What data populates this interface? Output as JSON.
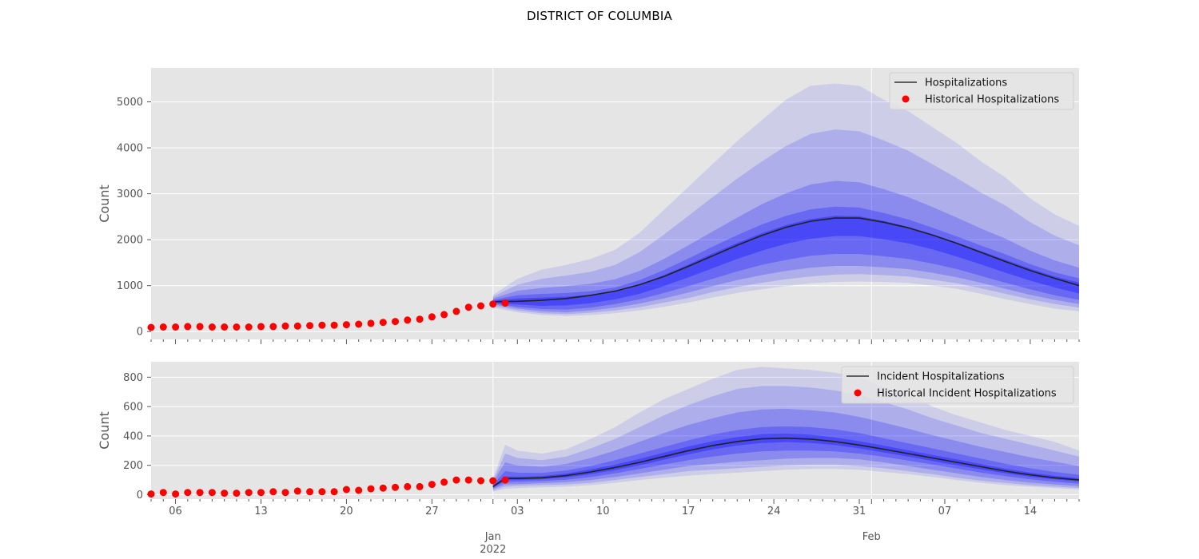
{
  "figure": {
    "suptitle": "DISTRICT OF COLUMBIA"
  },
  "chart_data": [
    {
      "type": "line",
      "name": "top-panel",
      "ylabel": "Count",
      "xlabel": "",
      "xlim": [
        "2021-12-04",
        "2022-02-18"
      ],
      "ylim": [
        -170,
        5740
      ],
      "yticks": [
        0,
        1000,
        2000,
        3000,
        4000,
        5000
      ],
      "grid": true,
      "legend_position": "top-right",
      "legend": [
        {
          "label": "Hospitalizations",
          "kind": "line",
          "color": "#333333"
        },
        {
          "label": "Historical Hospitalizations",
          "kind": "marker",
          "color": "#ff0000"
        }
      ],
      "median": {
        "name": "Hospitalizations",
        "x": [
          "2022-01-01",
          "2022-01-03",
          "2022-01-05",
          "2022-01-07",
          "2022-01-09",
          "2022-01-11",
          "2022-01-13",
          "2022-01-15",
          "2022-01-17",
          "2022-01-19",
          "2022-01-21",
          "2022-01-23",
          "2022-01-25",
          "2022-01-27",
          "2022-01-29",
          "2022-01-31",
          "2022-02-02",
          "2022-02-04",
          "2022-02-06",
          "2022-02-08",
          "2022-02-10",
          "2022-02-12",
          "2022-02-14",
          "2022-02-16",
          "2022-02-18"
        ],
        "values": [
          650,
          660,
          680,
          720,
          790,
          880,
          1020,
          1200,
          1420,
          1650,
          1880,
          2090,
          2270,
          2400,
          2470,
          2470,
          2380,
          2260,
          2100,
          1920,
          1720,
          1520,
          1330,
          1160,
          1000
        ]
      },
      "bands": {
        "x": [
          "2022-01-01",
          "2022-01-03",
          "2022-01-05",
          "2022-01-07",
          "2022-01-09",
          "2022-01-11",
          "2022-01-13",
          "2022-01-15",
          "2022-01-17",
          "2022-01-19",
          "2022-01-21",
          "2022-01-23",
          "2022-01-25",
          "2022-01-27",
          "2022-01-29",
          "2022-01-31",
          "2022-02-02",
          "2022-02-04",
          "2022-02-06",
          "2022-02-08",
          "2022-02-10",
          "2022-02-12",
          "2022-02-14",
          "2022-02-16",
          "2022-02-18"
        ],
        "levels": [
          {
            "lower": [
              520,
              420,
              360,
              340,
              360,
              400,
              460,
              540,
              630,
              740,
              840,
              920,
              990,
              1050,
              1080,
              1090,
              1080,
              1060,
              1000,
              930,
              820,
              700,
              600,
              500,
              440
            ],
            "upper": [
              800,
              1150,
              1350,
              1450,
              1580,
              1780,
              2150,
              2650,
              3150,
              3650,
              4150,
              4600,
              5050,
              5350,
              5400,
              5350,
              5050,
              4800,
              4450,
              4100,
              3700,
              3350,
              2900,
              2550,
              2300
            ]
          },
          {
            "lower": [
              560,
              460,
              400,
              380,
              410,
              460,
              530,
              630,
              730,
              860,
              970,
              1060,
              1140,
              1200,
              1240,
              1250,
              1230,
              1200,
              1130,
              1050,
              940,
              820,
              700,
              600,
              520
            ],
            "upper": [
              760,
              1020,
              1150,
              1220,
              1300,
              1450,
              1730,
              2110,
              2520,
              2930,
              3330,
              3700,
              4040,
              4300,
              4400,
              4360,
              4160,
              3940,
              3640,
              3340,
              3020,
              2740,
              2380,
              2090,
              1880
            ]
          },
          {
            "lower": [
              590,
              500,
              440,
              420,
              460,
              520,
              610,
              720,
              850,
              990,
              1120,
              1230,
              1320,
              1390,
              1430,
              1430,
              1400,
              1360,
              1280,
              1180,
              1060,
              930,
              800,
              690,
              600
            ],
            "upper": [
              720,
              890,
              950,
              990,
              1040,
              1140,
              1320,
              1580,
              1880,
              2180,
              2480,
              2770,
              3010,
              3200,
              3280,
              3250,
              3100,
              2930,
              2710,
              2480,
              2240,
              2020,
              1760,
              1550,
              1390
            ]
          },
          {
            "lower": [
              610,
              540,
              490,
              480,
              520,
              600,
              700,
              840,
              990,
              1150,
              1310,
              1450,
              1560,
              1650,
              1690,
              1690,
              1640,
              1580,
              1480,
              1360,
              1210,
              1060,
              920,
              790,
              690
            ],
            "upper": [
              690,
              790,
              820,
              840,
              880,
              960,
              1120,
              1340,
              1590,
              1850,
              2100,
              2330,
              2520,
              2660,
              2720,
              2700,
              2580,
              2440,
              2260,
              2070,
              1870,
              1680,
              1470,
              1290,
              1160
            ]
          },
          {
            "lower": [
              630,
              590,
              560,
              570,
              620,
              700,
              820,
              990,
              1180,
              1380,
              1580,
              1760,
              1910,
              2020,
              2080,
              2080,
              2010,
              1920,
              1790,
              1630,
              1460,
              1280,
              1110,
              960,
              830
            ],
            "upper": [
              670,
              720,
              740,
              760,
              800,
              880,
              1030,
              1230,
              1460,
              1700,
              1930,
              2140,
              2320,
              2450,
              2520,
              2510,
              2410,
              2280,
              2120,
              1940,
              1750,
              1560,
              1370,
              1200,
              1070
            ]
          }
        ]
      },
      "historical": {
        "name": "Historical Hospitalizations",
        "x": [
          "2021-12-04",
          "2021-12-05",
          "2021-12-06",
          "2021-12-07",
          "2021-12-08",
          "2021-12-09",
          "2021-12-10",
          "2021-12-11",
          "2021-12-12",
          "2021-12-13",
          "2021-12-14",
          "2021-12-15",
          "2021-12-16",
          "2021-12-17",
          "2021-12-18",
          "2021-12-19",
          "2021-12-20",
          "2021-12-21",
          "2021-12-22",
          "2021-12-23",
          "2021-12-24",
          "2021-12-25",
          "2021-12-26",
          "2021-12-27",
          "2021-12-28",
          "2021-12-29",
          "2021-12-30",
          "2021-12-31",
          "2022-01-01",
          "2022-01-02"
        ],
        "values": [
          90,
          100,
          100,
          110,
          110,
          100,
          100,
          100,
          100,
          110,
          110,
          120,
          120,
          130,
          140,
          140,
          150,
          160,
          180,
          200,
          220,
          250,
          270,
          320,
          370,
          440,
          530,
          560,
          600,
          620
        ]
      },
      "x_tick_labels": [
        {
          "date": "2021-12-06",
          "label": "06"
        },
        {
          "date": "2021-12-13",
          "label": "13"
        },
        {
          "date": "2021-12-20",
          "label": "20"
        },
        {
          "date": "2021-12-27",
          "label": "27"
        },
        {
          "date": "2022-01-03",
          "label": "03"
        },
        {
          "date": "2022-01-10",
          "label": "10"
        },
        {
          "date": "2022-01-17",
          "label": "17"
        },
        {
          "date": "2022-01-24",
          "label": "24"
        },
        {
          "date": "2022-01-31",
          "label": "31"
        },
        {
          "date": "2022-02-07",
          "label": "07"
        },
        {
          "date": "2022-02-14",
          "label": "14"
        }
      ],
      "x_month_labels": [
        {
          "date": "2022-01-01",
          "lines": [
            "Jan",
            "2022"
          ]
        },
        {
          "date": "2022-02-01",
          "lines": [
            "Feb"
          ]
        }
      ]
    },
    {
      "type": "line",
      "name": "bottom-panel",
      "ylabel": "Count",
      "xlabel": "",
      "xlim": [
        "2021-12-04",
        "2022-02-18"
      ],
      "ylim": [
        -30,
        905
      ],
      "yticks": [
        0,
        200,
        400,
        600,
        800
      ],
      "grid": true,
      "legend_position": "top-right",
      "legend": [
        {
          "label": "Incident Hospitalizations",
          "kind": "line",
          "color": "#333333"
        },
        {
          "label": "Historical Incident Hospitalizations",
          "kind": "marker",
          "color": "#ff0000"
        }
      ],
      "median": {
        "name": "Incident Hospitalizations",
        "x": [
          "2022-01-01",
          "2022-01-02",
          "2022-01-03",
          "2022-01-05",
          "2022-01-07",
          "2022-01-09",
          "2022-01-11",
          "2022-01-13",
          "2022-01-15",
          "2022-01-17",
          "2022-01-19",
          "2022-01-21",
          "2022-01-23",
          "2022-01-25",
          "2022-01-27",
          "2022-01-29",
          "2022-01-31",
          "2022-02-02",
          "2022-02-04",
          "2022-02-06",
          "2022-02-08",
          "2022-02-10",
          "2022-02-12",
          "2022-02-14",
          "2022-02-16",
          "2022-02-18"
        ],
        "values": [
          55,
          110,
          110,
          115,
          130,
          155,
          185,
          220,
          260,
          300,
          335,
          362,
          380,
          385,
          378,
          362,
          338,
          310,
          280,
          250,
          220,
          190,
          160,
          135,
          115,
          100
        ]
      },
      "bands": {
        "x": [
          "2022-01-01",
          "2022-01-02",
          "2022-01-03",
          "2022-01-05",
          "2022-01-07",
          "2022-01-09",
          "2022-01-11",
          "2022-01-13",
          "2022-01-15",
          "2022-01-17",
          "2022-01-19",
          "2022-01-21",
          "2022-01-23",
          "2022-01-25",
          "2022-01-27",
          "2022-01-29",
          "2022-01-31",
          "2022-02-02",
          "2022-02-04",
          "2022-02-06",
          "2022-02-08",
          "2022-02-10",
          "2022-02-12",
          "2022-02-14",
          "2022-02-16",
          "2022-02-18"
        ],
        "levels": [
          {
            "lower": [
              20,
              40,
              45,
              50,
              55,
              65,
              80,
              100,
              115,
              130,
              140,
              150,
              160,
              170,
              175,
              175,
              170,
              155,
              140,
              120,
              100,
              80,
              65,
              55,
              45,
              35
            ],
            "upper": [
              110,
              340,
              300,
              280,
              310,
              380,
              460,
              560,
              650,
              720,
              790,
              850,
              870,
              860,
              850,
              830,
              800,
              730,
              680,
              600,
              540,
              490,
              440,
              400,
              360,
              300
            ]
          },
          {
            "lower": [
              30,
              55,
              60,
              65,
              70,
              80,
              100,
              120,
              140,
              160,
              170,
              180,
              190,
              200,
              205,
              205,
              195,
              180,
              160,
              140,
              115,
              95,
              80,
              65,
              55,
              45
            ],
            "upper": [
              95,
              280,
              250,
              235,
              260,
              315,
              380,
              460,
              540,
              610,
              670,
              720,
              740,
              740,
              730,
              710,
              680,
              630,
              580,
              520,
              470,
              420,
              380,
              340,
              300,
              260
            ]
          },
          {
            "lower": [
              38,
              70,
              72,
              78,
              85,
              100,
              120,
              145,
              170,
              195,
              210,
              225,
              235,
              245,
              250,
              250,
              240,
              220,
              195,
              170,
              145,
              120,
              100,
              82,
              70,
              58
            ],
            "upper": [
              85,
              220,
              200,
              190,
              210,
              250,
              300,
              360,
              420,
              475,
              520,
              560,
              580,
              585,
              575,
              560,
              530,
              490,
              450,
              405,
              365,
              325,
              290,
              255,
              225,
              195
            ]
          },
          {
            "lower": [
              45,
              85,
              88,
              93,
              102,
              120,
              145,
              175,
              205,
              235,
              260,
              280,
              295,
              300,
              300,
              295,
              280,
              258,
              232,
              205,
              178,
              150,
              126,
              105,
              88,
              75
            ],
            "upper": [
              70,
              160,
              150,
              148,
              165,
              195,
              235,
              280,
              325,
              370,
              410,
              440,
              460,
              465,
              460,
              445,
              420,
              385,
              350,
              315,
              280,
              245,
              210,
              180,
              155,
              135
            ]
          },
          {
            "lower": [
              50,
              100,
              100,
              105,
              118,
              140,
              168,
              200,
              238,
              275,
              308,
              335,
              352,
              358,
              352,
              338,
              315,
              288,
              260,
              230,
              200,
              172,
              145,
              122,
              104,
              90
            ],
            "upper": [
              62,
              125,
              122,
              126,
              144,
              172,
              205,
              244,
              286,
              328,
              364,
              392,
              412,
              416,
              408,
              390,
              364,
              334,
              302,
              270,
              240,
              208,
              176,
              150,
              128,
              112
            ]
          }
        ]
      },
      "historical": {
        "name": "Historical Incident Hospitalizations",
        "x": [
          "2021-12-04",
          "2021-12-05",
          "2021-12-06",
          "2021-12-07",
          "2021-12-08",
          "2021-12-09",
          "2021-12-10",
          "2021-12-11",
          "2021-12-12",
          "2021-12-13",
          "2021-12-14",
          "2021-12-15",
          "2021-12-16",
          "2021-12-17",
          "2021-12-18",
          "2021-12-19",
          "2021-12-20",
          "2021-12-21",
          "2021-12-22",
          "2021-12-23",
          "2021-12-24",
          "2021-12-25",
          "2021-12-26",
          "2021-12-27",
          "2021-12-28",
          "2021-12-29",
          "2021-12-30",
          "2021-12-31",
          "2022-01-01",
          "2022-01-02"
        ],
        "values": [
          5,
          15,
          5,
          15,
          15,
          15,
          10,
          10,
          15,
          15,
          20,
          15,
          25,
          20,
          20,
          20,
          35,
          30,
          40,
          45,
          50,
          55,
          55,
          70,
          85,
          100,
          100,
          95,
          95,
          100
        ]
      }
    }
  ]
}
